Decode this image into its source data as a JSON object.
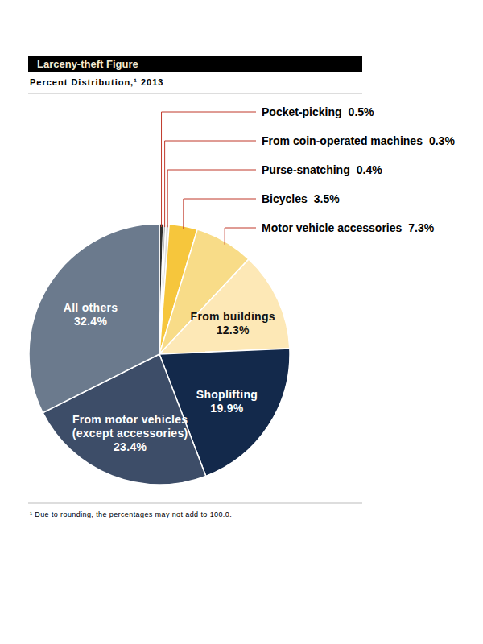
{
  "chart_data": {
    "type": "pie",
    "title": "Larceny-theft Figure",
    "subtitle": "Percent Distribution,¹ 2013",
    "footnote": "¹ Due to rounding, the percentages may not add to 100.0.",
    "categories": [
      "Pocket-picking",
      "From coin-operated machines",
      "Purse-snatching",
      "Bicycles",
      "Motor vehicle accessories",
      "From buildings",
      "Shoplifting",
      "From motor vehicles (except accessories)",
      "All others"
    ],
    "values": [
      0.5,
      0.3,
      0.4,
      3.5,
      7.3,
      12.3,
      19.9,
      23.4,
      32.4
    ],
    "value_labels": [
      "0.5%",
      "0.3%",
      "0.4%",
      "3.5%",
      "7.3%",
      "12.3%",
      "19.9%",
      "23.4%",
      "32.4%"
    ],
    "colors": [
      "#2e2e2e",
      "#b8b8b8",
      "#dcdcdc",
      "#f6c63c",
      "#f8dc88",
      "#fde8b6",
      "#13294b",
      "#3d4d68",
      "#6b7a8d"
    ],
    "data_labels": true
  }
}
